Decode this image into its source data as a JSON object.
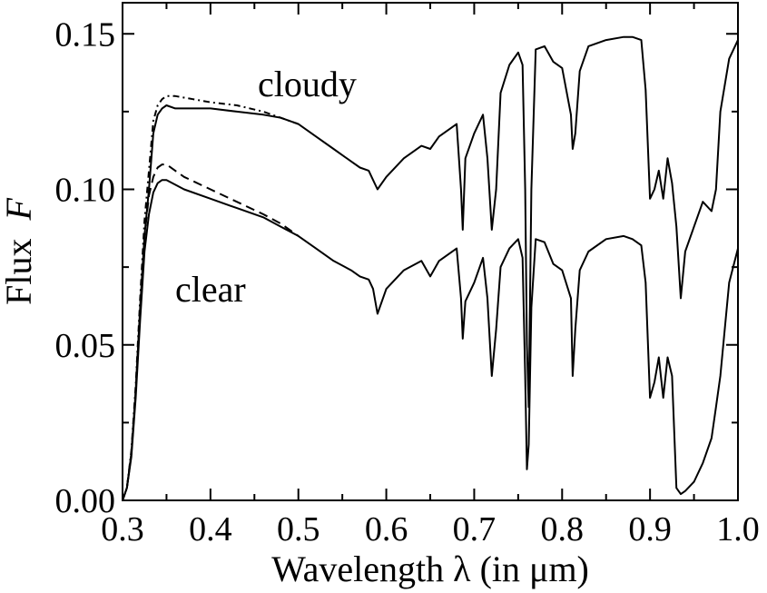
{
  "chart_data": {
    "type": "line",
    "title": "",
    "xlabel": "Wavelength λ (in μm)",
    "ylabel": "Flux F",
    "ylabel_parts": [
      "Flux",
      "F"
    ],
    "xlabel_parts": [
      "Wavelength",
      "λ",
      "(in",
      "μm)"
    ],
    "xlim": [
      0.3,
      1.0
    ],
    "ylim": [
      0.0,
      0.16
    ],
    "xticks": [
      0.3,
      0.4,
      0.5,
      0.6,
      0.7,
      0.8,
      0.9,
      1.0
    ],
    "xtick_labels": [
      "0.3",
      "0.4",
      "0.5",
      "0.6",
      "0.7",
      "0.8",
      "0.9",
      "1.0"
    ],
    "yticks": [
      0.0,
      0.05,
      0.1,
      0.15
    ],
    "ytick_labels": [
      "0.00",
      "0.05",
      "0.10",
      "0.15"
    ],
    "grid": false,
    "annotations": [
      {
        "text": "cloudy",
        "x": 0.51,
        "y": 0.13
      },
      {
        "text": "clear",
        "x": 0.4,
        "y": 0.064
      }
    ],
    "series": [
      {
        "style": "solid",
        "x": [
          0.3,
          0.305,
          0.31,
          0.315,
          0.32,
          0.325,
          0.33,
          0.335,
          0.34,
          0.345,
          0.35,
          0.36,
          0.38,
          0.4,
          0.43,
          0.46,
          0.48,
          0.5,
          0.52,
          0.54,
          0.56,
          0.57,
          0.58,
          0.585,
          0.59,
          0.6,
          0.62,
          0.64,
          0.65,
          0.66,
          0.68,
          0.685,
          0.687,
          0.69,
          0.7,
          0.71,
          0.715,
          0.72,
          0.725,
          0.73,
          0.74,
          0.75,
          0.755,
          0.758,
          0.76,
          0.762,
          0.765,
          0.77,
          0.78,
          0.79,
          0.8,
          0.81,
          0.812,
          0.815,
          0.82,
          0.83,
          0.85,
          0.87,
          0.88,
          0.89,
          0.895,
          0.9,
          0.905,
          0.91,
          0.915,
          0.92,
          0.925,
          0.93,
          0.935,
          0.94,
          0.95,
          0.96,
          0.97,
          0.975,
          0.98,
          0.99,
          1.0
        ],
        "y": [
          0.0,
          0.004,
          0.015,
          0.035,
          0.062,
          0.085,
          0.1,
          0.118,
          0.124,
          0.126,
          0.127,
          0.126,
          0.126,
          0.126,
          0.125,
          0.124,
          0.123,
          0.121,
          0.117,
          0.113,
          0.109,
          0.107,
          0.106,
          0.103,
          0.1,
          0.104,
          0.11,
          0.114,
          0.113,
          0.117,
          0.121,
          0.1,
          0.087,
          0.11,
          0.118,
          0.124,
          0.11,
          0.087,
          0.1,
          0.131,
          0.14,
          0.144,
          0.14,
          0.1,
          0.05,
          0.03,
          0.1,
          0.145,
          0.146,
          0.141,
          0.139,
          0.124,
          0.113,
          0.118,
          0.138,
          0.146,
          0.148,
          0.149,
          0.149,
          0.148,
          0.132,
          0.097,
          0.1,
          0.106,
          0.097,
          0.11,
          0.102,
          0.088,
          0.065,
          0.08,
          0.088,
          0.096,
          0.093,
          0.1,
          0.125,
          0.142,
          0.148
        ]
      },
      {
        "style": "dash-dot",
        "x": [
          0.3,
          0.305,
          0.31,
          0.315,
          0.32,
          0.325,
          0.33,
          0.335,
          0.34,
          0.345,
          0.35,
          0.36,
          0.38,
          0.4,
          0.43,
          0.46,
          0.48,
          0.5
        ],
        "y": [
          0.0,
          0.004,
          0.016,
          0.037,
          0.065,
          0.09,
          0.106,
          0.122,
          0.127,
          0.129,
          0.13,
          0.13,
          0.129,
          0.128,
          0.127,
          0.125,
          0.123,
          0.121
        ]
      },
      {
        "style": "solid",
        "x": [
          0.3,
          0.305,
          0.31,
          0.315,
          0.32,
          0.325,
          0.33,
          0.335,
          0.34,
          0.345,
          0.35,
          0.37,
          0.4,
          0.43,
          0.46,
          0.48,
          0.5,
          0.52,
          0.54,
          0.56,
          0.57,
          0.58,
          0.585,
          0.59,
          0.6,
          0.62,
          0.64,
          0.65,
          0.66,
          0.68,
          0.685,
          0.687,
          0.69,
          0.7,
          0.71,
          0.715,
          0.72,
          0.725,
          0.73,
          0.74,
          0.75,
          0.755,
          0.758,
          0.76,
          0.762,
          0.765,
          0.77,
          0.78,
          0.79,
          0.8,
          0.81,
          0.812,
          0.815,
          0.82,
          0.83,
          0.85,
          0.87,
          0.88,
          0.89,
          0.895,
          0.9,
          0.905,
          0.91,
          0.915,
          0.92,
          0.925,
          0.93,
          0.935,
          0.94,
          0.95,
          0.96,
          0.97,
          0.975,
          0.98,
          0.99,
          1.0
        ],
        "y": [
          0.0,
          0.004,
          0.014,
          0.033,
          0.058,
          0.08,
          0.092,
          0.099,
          0.102,
          0.103,
          0.103,
          0.1,
          0.097,
          0.094,
          0.091,
          0.088,
          0.085,
          0.081,
          0.077,
          0.074,
          0.072,
          0.071,
          0.068,
          0.06,
          0.068,
          0.074,
          0.077,
          0.072,
          0.077,
          0.081,
          0.065,
          0.052,
          0.064,
          0.07,
          0.078,
          0.065,
          0.04,
          0.055,
          0.075,
          0.081,
          0.084,
          0.078,
          0.04,
          0.01,
          0.018,
          0.062,
          0.084,
          0.083,
          0.076,
          0.074,
          0.065,
          0.04,
          0.055,
          0.074,
          0.08,
          0.084,
          0.085,
          0.084,
          0.082,
          0.07,
          0.033,
          0.038,
          0.046,
          0.033,
          0.046,
          0.04,
          0.004,
          0.002,
          0.003,
          0.006,
          0.012,
          0.02,
          0.03,
          0.04,
          0.07,
          0.081
        ]
      },
      {
        "style": "dashed",
        "x": [
          0.3,
          0.305,
          0.31,
          0.315,
          0.32,
          0.325,
          0.33,
          0.335,
          0.34,
          0.345,
          0.35,
          0.37,
          0.4,
          0.43,
          0.46,
          0.48,
          0.5
        ],
        "y": [
          0.0,
          0.004,
          0.015,
          0.035,
          0.061,
          0.085,
          0.098,
          0.104,
          0.107,
          0.108,
          0.108,
          0.104,
          0.1,
          0.096,
          0.092,
          0.089,
          0.085
        ]
      }
    ]
  }
}
